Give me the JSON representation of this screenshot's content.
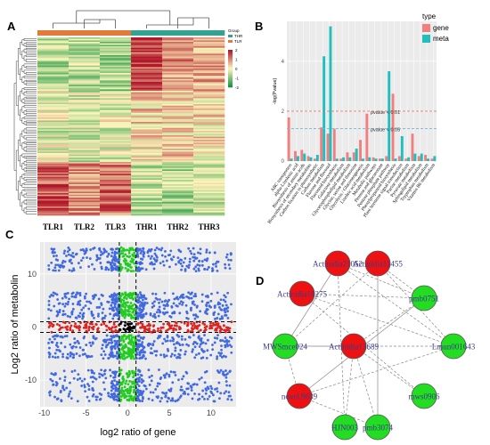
{
  "panels": {
    "A": {
      "label": "A"
    },
    "B": {
      "label": "B"
    },
    "C": {
      "label": "C"
    },
    "D": {
      "label": "D"
    }
  },
  "colors": {
    "gene": "#f08080",
    "meta": "#1fbfbf",
    "heat_high": "#b2182b",
    "heat_mid": "#fff7bc",
    "heat_low": "#1a9641",
    "thr_bar": "#31a38f",
    "tlr_bar": "#e07b39",
    "scatter_blue": "#4169e1",
    "scatter_green": "#22cc22",
    "scatter_red": "#dd2222",
    "scatter_black": "#000000",
    "node_red": "#ee1111",
    "node_green": "#22dd22"
  },
  "chart_data": [
    {
      "panel": "A",
      "type": "heatmap",
      "columns": [
        "TLR1",
        "TLR2",
        "TLR3",
        "THR1",
        "THR2",
        "THR3"
      ],
      "column_groups": [
        "TLR",
        "TLR",
        "TLR",
        "THR",
        "THR",
        "THR"
      ],
      "legend_title": "Group",
      "legend_items": [
        "THR",
        "TLR"
      ],
      "scale_ticks": [
        "2",
        "1",
        "0",
        "-1",
        "-2"
      ],
      "value_range": [
        -2,
        2
      ],
      "blocks": [
        {
          "fraction": 0.3,
          "values": [
            -0.7,
            -0.6,
            -0.8,
            1.6,
            0.9,
            0.6
          ]
        },
        {
          "fraction": 0.4,
          "values": [
            -0.3,
            -0.4,
            -0.3,
            0.3,
            0.4,
            0.2
          ]
        },
        {
          "fraction": 0.3,
          "values": [
            1.4,
            1.0,
            1.2,
            -0.6,
            -0.8,
            -0.5
          ]
        }
      ]
    },
    {
      "panel": "B",
      "type": "bar",
      "ylabel": "-log(Pvalue)",
      "ylim": [
        0,
        5.6
      ],
      "yticks": [
        0,
        2,
        4
      ],
      "legend_title": "type",
      "legend_position": "top-right",
      "categories": [
        "ABC transporters",
        "alpha-Linolenic acid",
        "Biosynthesis of amino acids",
        "Biosynthesis of secondary metabolites",
        "Carbon fixation in photosynthetic",
        "Carbon metabolism",
        "Flavone and flavonol",
        "Flavonoid biosynthesis",
        "Galactose metabolism",
        "Glycerophospholipid metabolism",
        "Glycine, serine and threonine",
        "Glycolysis / Gluconeogenesis",
        "Linoleic acid metabolism",
        "Metabolic pathways",
        "Pentose and glucuronate",
        "Pentose phosphate pathway",
        "Phenylpropanoid biosynthesis",
        "Plant hormone signal transduction",
        "Purine metabolism",
        "Pyruvate metabolism",
        "Sphingolipid metabolism",
        "Tryptophan metabolism",
        "Vitamin B6 metabolism"
      ],
      "series": [
        {
          "name": "gene",
          "values": [
            1.75,
            0.4,
            0.45,
            0.2,
            0.1,
            1.35,
            1.1,
            1.3,
            0.1,
            0.35,
            0.35,
            0.85,
            1.9,
            0.15,
            0.1,
            0.2,
            2.7,
            0.2,
            0.1,
            1.1,
            0.2,
            0.25,
            0.1
          ]
        },
        {
          "name": "meta",
          "values": [
            0.1,
            0.2,
            0.3,
            0.15,
            0.25,
            4.2,
            5.4,
            0.1,
            0.15,
            0.15,
            0.5,
            0.1,
            0.15,
            0.1,
            0.1,
            3.6,
            0.1,
            1.0,
            0.15,
            0.3,
            0.3,
            0.1,
            0.2
          ]
        }
      ],
      "reference_lines": [
        {
          "label": "pvalue < 0.01",
          "y": 2.0,
          "color": "#e07070"
        },
        {
          "label": "pvalue < 0.05",
          "y": 1.3,
          "color": "#70b8d8"
        }
      ]
    },
    {
      "panel": "C",
      "type": "scatter",
      "xlabel": "log2 ratio of gene",
      "ylabel": "Log2 ratio of metabolin",
      "xlim": [
        -10.5,
        13
      ],
      "ylim": [
        -15,
        16
      ],
      "xticks": [
        -10,
        -5,
        0,
        5,
        10
      ],
      "yticks": [
        -10,
        0,
        10
      ],
      "threshold_lines_x": [
        -1,
        1
      ],
      "threshold_lines_y": [
        -1,
        1
      ],
      "y_bands": [
        {
          "y_range": [
            10.5,
            15
          ],
          "density": 0.75
        },
        {
          "y_range": [
            1.5,
            6.5
          ],
          "density": 1.0
        },
        {
          "y_range": [
            -6,
            -1.5
          ],
          "density": 0.9
        },
        {
          "y_range": [
            -14,
            -8
          ],
          "density": 0.85
        }
      ],
      "center_band": {
        "y_range": [
          -1,
          1
        ]
      },
      "x_spread": [
        -9.5,
        12.5
      ]
    },
    {
      "panel": "D",
      "type": "network",
      "nodes": [
        {
          "id": "Actinidia21052",
          "label": "Actinidia21052",
          "kind": "metabolite"
        },
        {
          "id": "Actinidia11455",
          "label": "Actinidia11455",
          "kind": "metabolite"
        },
        {
          "id": "Actinidia18275",
          "label": "Actinidia18275",
          "kind": "metabolite"
        },
        {
          "id": "pmb0751",
          "label": "pmb0751",
          "kind": "gene"
        },
        {
          "id": "MWSmce024",
          "label": "MWSmce024",
          "kind": "gene"
        },
        {
          "id": "Actinidia13689",
          "label": "Actinidia13689",
          "kind": "metabolite"
        },
        {
          "id": "Lmun001643",
          "label": "Lmun001643",
          "kind": "gene"
        },
        {
          "id": "novel.9639",
          "label": "novel.9639",
          "kind": "metabolite"
        },
        {
          "id": "mws0906",
          "label": "mws0906",
          "kind": "gene"
        },
        {
          "id": "HJN003",
          "label": "HJN003",
          "kind": "gene"
        },
        {
          "id": "pmb3074",
          "label": "pmb3074",
          "kind": "gene"
        }
      ],
      "edges": [
        {
          "a": "Actinidia21052",
          "b": "pmb0751",
          "style": "dashed"
        },
        {
          "a": "Actinidia21052",
          "b": "MWSmce024",
          "style": "solid"
        },
        {
          "a": "Actinidia21052",
          "b": "Lmun001643",
          "style": "dashed"
        },
        {
          "a": "Actinidia21052",
          "b": "HJN003",
          "style": "dashed"
        },
        {
          "a": "Actinidia11455",
          "b": "MWSmce024",
          "style": "dashed"
        },
        {
          "a": "Actinidia11455",
          "b": "pmb0751",
          "style": "dashed"
        },
        {
          "a": "Actinidia11455",
          "b": "Lmun001643",
          "style": "dashed"
        },
        {
          "a": "Actinidia11455",
          "b": "pmb3074",
          "style": "solid"
        },
        {
          "a": "Actinidia18275",
          "b": "pmb0751",
          "style": "dashed"
        },
        {
          "a": "Actinidia18275",
          "b": "Lmun001643",
          "style": "dashed"
        },
        {
          "a": "Actinidia18275",
          "b": "mws0906",
          "style": "dashed"
        },
        {
          "a": "Actinidia13689",
          "b": "MWSmce024",
          "style": "solid"
        },
        {
          "a": "Actinidia13689",
          "b": "pmb0751",
          "style": "dashed"
        },
        {
          "a": "Actinidia13689",
          "b": "Lmun001643",
          "style": "dashed"
        },
        {
          "a": "Actinidia13689",
          "b": "HJN003",
          "style": "dashed"
        },
        {
          "a": "Actinidia13689",
          "b": "pmb3074",
          "style": "dashed"
        },
        {
          "a": "Actinidia13689",
          "b": "mws0906",
          "style": "dashed"
        },
        {
          "a": "novel.9639",
          "b": "MWSmce024",
          "style": "dashed"
        },
        {
          "a": "novel.9639",
          "b": "pmb0751",
          "style": "solid"
        },
        {
          "a": "novel.9639",
          "b": "Lmun001643",
          "style": "dashed"
        },
        {
          "a": "novel.9639",
          "b": "pmb3074",
          "style": "dashed"
        }
      ]
    }
  ]
}
